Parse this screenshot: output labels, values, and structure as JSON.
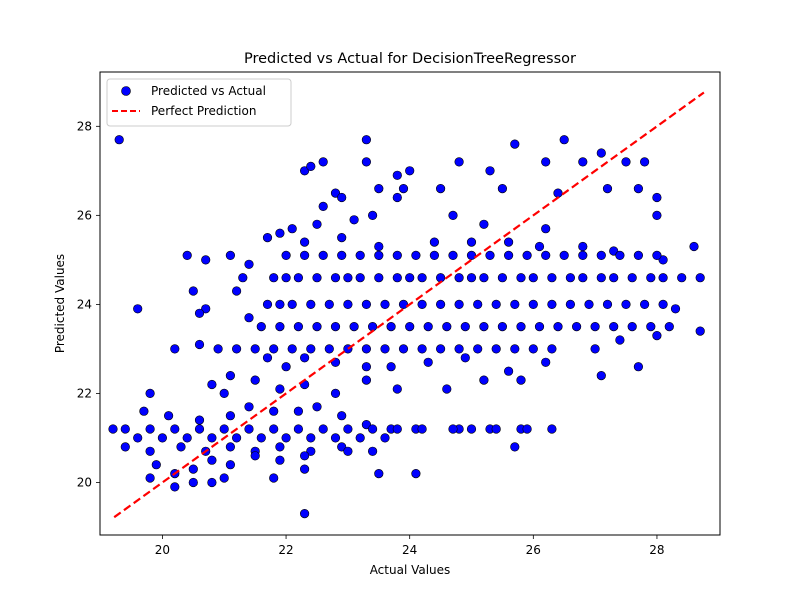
{
  "chart_data": {
    "type": "scatter",
    "title": "Predicted vs Actual for DecisionTreeRegressor",
    "xlabel": "Actual Values",
    "ylabel": "Predicted Values",
    "xlim": [
      18.99,
      29.02
    ],
    "ylim": [
      18.82,
      29.22
    ],
    "xticks": [
      20,
      22,
      24,
      26,
      28
    ],
    "yticks": [
      20,
      22,
      24,
      26,
      28
    ],
    "grid": false,
    "legend": {
      "placement": "upper left",
      "entries": [
        {
          "label": "Predicted vs Actual",
          "marker": "circle",
          "color": "#0000ff",
          "edge": "#000000"
        },
        {
          "label": "Perfect Prediction",
          "marker": "dashed-line",
          "color": "#ff0000"
        }
      ]
    },
    "series": [
      {
        "name": "Predicted vs Actual",
        "kind": "points",
        "color": "#0000ff",
        "points": [
          [
            19.3,
            27.7
          ],
          [
            21.7,
            25.5
          ],
          [
            22.3,
            27.0
          ],
          [
            22.6,
            27.2
          ],
          [
            22.4,
            27.1
          ],
          [
            23.3,
            27.7
          ],
          [
            23.3,
            27.2
          ],
          [
            23.8,
            26.9
          ],
          [
            24.0,
            27.0
          ],
          [
            24.8,
            27.2
          ],
          [
            25.3,
            27.0
          ],
          [
            25.7,
            27.6
          ],
          [
            26.2,
            27.2
          ],
          [
            26.5,
            27.7
          ],
          [
            26.8,
            27.2
          ],
          [
            27.1,
            27.4
          ],
          [
            27.5,
            27.2
          ],
          [
            27.8,
            27.2
          ],
          [
            22.8,
            26.5
          ],
          [
            22.9,
            26.4
          ],
          [
            23.5,
            26.6
          ],
          [
            23.9,
            26.6
          ],
          [
            24.5,
            26.6
          ],
          [
            25.5,
            26.6
          ],
          [
            26.4,
            26.5
          ],
          [
            27.2,
            26.6
          ],
          [
            27.7,
            26.6
          ],
          [
            28.0,
            26.4
          ],
          [
            22.6,
            26.2
          ],
          [
            23.1,
            25.9
          ],
          [
            23.4,
            26.0
          ],
          [
            23.8,
            26.4
          ],
          [
            24.7,
            26.0
          ],
          [
            25.2,
            25.8
          ],
          [
            26.2,
            25.7
          ],
          [
            28.0,
            26.0
          ],
          [
            22.5,
            25.8
          ],
          [
            22.1,
            25.7
          ],
          [
            20.7,
            25.0
          ],
          [
            20.4,
            25.1
          ],
          [
            21.1,
            25.1
          ],
          [
            21.4,
            24.9
          ],
          [
            21.9,
            25.6
          ],
          [
            22.3,
            25.4
          ],
          [
            22.9,
            25.5
          ],
          [
            23.5,
            25.3
          ],
          [
            24.4,
            25.4
          ],
          [
            25.0,
            25.4
          ],
          [
            25.6,
            25.4
          ],
          [
            26.1,
            25.3
          ],
          [
            26.8,
            25.3
          ],
          [
            27.3,
            25.2
          ],
          [
            28.1,
            25.0
          ],
          [
            28.6,
            25.3
          ],
          [
            21.3,
            24.6
          ],
          [
            21.8,
            24.6
          ],
          [
            22.0,
            24.6
          ],
          [
            22.2,
            24.6
          ],
          [
            22.5,
            24.6
          ],
          [
            22.8,
            24.6
          ],
          [
            23.0,
            24.6
          ],
          [
            23.2,
            24.6
          ],
          [
            23.5,
            24.6
          ],
          [
            23.8,
            24.6
          ],
          [
            24.0,
            24.6
          ],
          [
            24.2,
            24.6
          ],
          [
            24.5,
            24.6
          ],
          [
            24.8,
            24.6
          ],
          [
            25.0,
            24.6
          ],
          [
            25.2,
            24.6
          ],
          [
            25.5,
            24.6
          ],
          [
            25.8,
            24.6
          ],
          [
            26.0,
            24.6
          ],
          [
            26.3,
            24.6
          ],
          [
            26.6,
            24.6
          ],
          [
            26.8,
            24.6
          ],
          [
            27.1,
            24.6
          ],
          [
            27.3,
            24.6
          ],
          [
            27.6,
            24.6
          ],
          [
            27.9,
            24.6
          ],
          [
            28.1,
            24.6
          ],
          [
            28.4,
            24.6
          ],
          [
            28.7,
            24.6
          ],
          [
            22.0,
            25.1
          ],
          [
            22.3,
            25.1
          ],
          [
            22.6,
            25.1
          ],
          [
            22.9,
            25.1
          ],
          [
            23.2,
            25.1
          ],
          [
            23.5,
            25.1
          ],
          [
            23.8,
            25.1
          ],
          [
            24.1,
            25.1
          ],
          [
            24.4,
            25.1
          ],
          [
            24.7,
            25.1
          ],
          [
            25.0,
            25.1
          ],
          [
            25.3,
            25.1
          ],
          [
            25.6,
            25.1
          ],
          [
            25.9,
            25.1
          ],
          [
            26.2,
            25.1
          ],
          [
            26.5,
            25.1
          ],
          [
            26.8,
            25.1
          ],
          [
            27.1,
            25.1
          ],
          [
            27.4,
            25.1
          ],
          [
            27.7,
            25.1
          ],
          [
            28.0,
            25.1
          ],
          [
            20.5,
            24.3
          ],
          [
            21.2,
            24.3
          ],
          [
            20.7,
            23.9
          ],
          [
            21.7,
            24.0
          ],
          [
            21.9,
            24.0
          ],
          [
            22.1,
            24.0
          ],
          [
            22.4,
            24.0
          ],
          [
            22.7,
            24.0
          ],
          [
            23.0,
            24.0
          ],
          [
            23.3,
            24.0
          ],
          [
            23.6,
            24.0
          ],
          [
            23.9,
            24.0
          ],
          [
            24.2,
            24.0
          ],
          [
            24.5,
            24.0
          ],
          [
            24.8,
            24.0
          ],
          [
            25.1,
            24.0
          ],
          [
            25.4,
            24.0
          ],
          [
            25.7,
            24.0
          ],
          [
            26.0,
            24.0
          ],
          [
            26.3,
            24.0
          ],
          [
            26.6,
            24.0
          ],
          [
            26.9,
            24.0
          ],
          [
            27.2,
            24.0
          ],
          [
            27.5,
            24.0
          ],
          [
            27.8,
            24.0
          ],
          [
            28.1,
            24.0
          ],
          [
            28.3,
            23.9
          ],
          [
            19.6,
            23.9
          ],
          [
            20.6,
            23.8
          ],
          [
            21.4,
            23.7
          ],
          [
            21.6,
            23.5
          ],
          [
            21.9,
            23.5
          ],
          [
            22.2,
            23.5
          ],
          [
            22.5,
            23.5
          ],
          [
            22.8,
            23.5
          ],
          [
            23.1,
            23.5
          ],
          [
            23.4,
            23.5
          ],
          [
            23.7,
            23.5
          ],
          [
            24.0,
            23.5
          ],
          [
            24.3,
            23.5
          ],
          [
            24.6,
            23.5
          ],
          [
            24.9,
            23.5
          ],
          [
            25.2,
            23.5
          ],
          [
            25.5,
            23.5
          ],
          [
            25.8,
            23.5
          ],
          [
            26.1,
            23.5
          ],
          [
            26.4,
            23.5
          ],
          [
            26.7,
            23.5
          ],
          [
            27.0,
            23.5
          ],
          [
            27.3,
            23.5
          ],
          [
            27.6,
            23.5
          ],
          [
            27.9,
            23.5
          ],
          [
            28.2,
            23.5
          ],
          [
            28.7,
            23.4
          ],
          [
            20.6,
            23.1
          ],
          [
            20.9,
            23.0
          ],
          [
            21.2,
            23.0
          ],
          [
            21.5,
            23.0
          ],
          [
            21.8,
            23.0
          ],
          [
            22.1,
            23.0
          ],
          [
            22.4,
            23.0
          ],
          [
            22.7,
            23.0
          ],
          [
            23.0,
            23.0
          ],
          [
            23.3,
            23.0
          ],
          [
            23.6,
            23.0
          ],
          [
            23.9,
            23.0
          ],
          [
            24.2,
            23.0
          ],
          [
            24.5,
            23.0
          ],
          [
            24.8,
            23.0
          ],
          [
            25.1,
            23.0
          ],
          [
            25.4,
            23.0
          ],
          [
            25.7,
            23.0
          ],
          [
            26.0,
            23.0
          ],
          [
            26.3,
            23.0
          ],
          [
            27.0,
            23.0
          ],
          [
            27.4,
            23.2
          ],
          [
            28.0,
            23.3
          ],
          [
            20.2,
            23.0
          ],
          [
            21.7,
            22.8
          ],
          [
            22.0,
            22.6
          ],
          [
            22.3,
            22.8
          ],
          [
            22.8,
            22.7
          ],
          [
            23.3,
            22.6
          ],
          [
            23.7,
            22.6
          ],
          [
            24.3,
            22.7
          ],
          [
            24.9,
            22.8
          ],
          [
            25.6,
            22.5
          ],
          [
            26.2,
            22.7
          ],
          [
            27.1,
            22.4
          ],
          [
            27.7,
            22.6
          ],
          [
            21.1,
            22.4
          ],
          [
            21.5,
            22.3
          ],
          [
            21.9,
            22.1
          ],
          [
            22.3,
            22.2
          ],
          [
            22.8,
            22.0
          ],
          [
            23.3,
            22.3
          ],
          [
            23.8,
            22.1
          ],
          [
            24.6,
            22.1
          ],
          [
            25.2,
            22.3
          ],
          [
            25.8,
            22.3
          ],
          [
            20.8,
            22.2
          ],
          [
            21.0,
            22.0
          ],
          [
            19.8,
            22.0
          ],
          [
            19.7,
            21.6
          ],
          [
            20.1,
            21.5
          ],
          [
            20.6,
            21.4
          ],
          [
            21.1,
            21.5
          ],
          [
            21.4,
            21.7
          ],
          [
            21.8,
            21.6
          ],
          [
            22.2,
            21.6
          ],
          [
            22.5,
            21.7
          ],
          [
            22.9,
            21.5
          ],
          [
            23.3,
            21.3
          ],
          [
            23.7,
            21.2
          ],
          [
            24.1,
            21.2
          ],
          [
            24.8,
            21.2
          ],
          [
            25.3,
            21.2
          ],
          [
            25.8,
            21.2
          ],
          [
            26.3,
            21.2
          ],
          [
            19.2,
            21.2
          ],
          [
            19.4,
            21.2
          ],
          [
            19.6,
            21.0
          ],
          [
            19.8,
            21.2
          ],
          [
            20.0,
            21.0
          ],
          [
            20.2,
            21.2
          ],
          [
            20.4,
            21.0
          ],
          [
            20.6,
            21.2
          ],
          [
            20.8,
            21.0
          ],
          [
            21.0,
            21.2
          ],
          [
            21.2,
            21.0
          ],
          [
            21.4,
            21.2
          ],
          [
            21.6,
            21.0
          ],
          [
            21.8,
            21.2
          ],
          [
            22.0,
            21.0
          ],
          [
            22.2,
            21.2
          ],
          [
            22.4,
            21.0
          ],
          [
            22.6,
            21.2
          ],
          [
            22.8,
            21.0
          ],
          [
            23.0,
            21.2
          ],
          [
            23.2,
            21.0
          ],
          [
            23.4,
            21.2
          ],
          [
            23.6,
            21.0
          ],
          [
            23.8,
            21.2
          ],
          [
            24.2,
            21.2
          ],
          [
            24.7,
            21.2
          ],
          [
            25.0,
            21.2
          ],
          [
            25.4,
            21.2
          ],
          [
            25.9,
            21.2
          ],
          [
            19.4,
            20.8
          ],
          [
            19.8,
            20.7
          ],
          [
            20.3,
            20.8
          ],
          [
            20.7,
            20.7
          ],
          [
            21.1,
            20.8
          ],
          [
            21.5,
            20.7
          ],
          [
            21.9,
            20.8
          ],
          [
            22.4,
            20.7
          ],
          [
            22.9,
            20.8
          ],
          [
            23.4,
            20.7
          ],
          [
            25.7,
            20.8
          ],
          [
            19.9,
            20.4
          ],
          [
            20.2,
            20.2
          ],
          [
            20.5,
            20.3
          ],
          [
            20.8,
            20.5
          ],
          [
            21.1,
            20.4
          ],
          [
            21.5,
            20.6
          ],
          [
            21.9,
            20.5
          ],
          [
            22.3,
            20.6
          ],
          [
            23.0,
            20.7
          ],
          [
            23.5,
            20.2
          ],
          [
            24.1,
            20.2
          ],
          [
            22.3,
            20.3
          ],
          [
            19.8,
            20.1
          ],
          [
            20.2,
            19.9
          ],
          [
            20.5,
            20.0
          ],
          [
            20.8,
            20.0
          ],
          [
            21.0,
            20.1
          ],
          [
            21.8,
            20.1
          ],
          [
            22.3,
            19.3
          ]
        ]
      },
      {
        "name": "Perfect Prediction",
        "kind": "line",
        "style": "dashed",
        "color": "#ff0000",
        "points": [
          [
            19.22,
            19.22
          ],
          [
            28.76,
            28.76
          ]
        ]
      }
    ]
  }
}
